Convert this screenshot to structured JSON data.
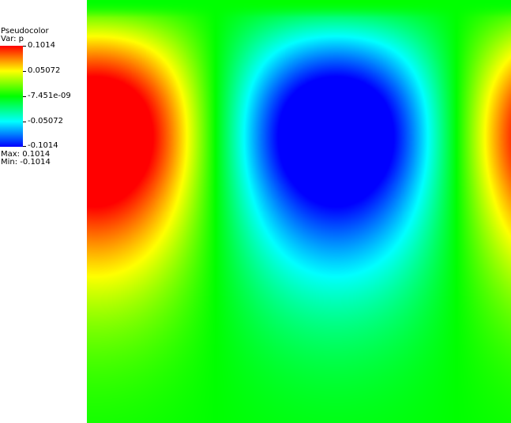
{
  "legend": {
    "title": "Pseudocolor",
    "variable": "Var: p",
    "ticks": [
      "0.1014",
      "0.05072",
      "-7.451e-09",
      "-0.05072",
      "-0.1014"
    ],
    "max_text": "Max:  0.1014",
    "min_text": "Min: -0.1014",
    "colormap": [
      "#ff0000",
      "#ffff00",
      "#00ff00",
      "#00ffff",
      "#0000ff"
    ]
  },
  "plot": {
    "variable": "p",
    "max": 0.1014,
    "min": -0.1014
  }
}
